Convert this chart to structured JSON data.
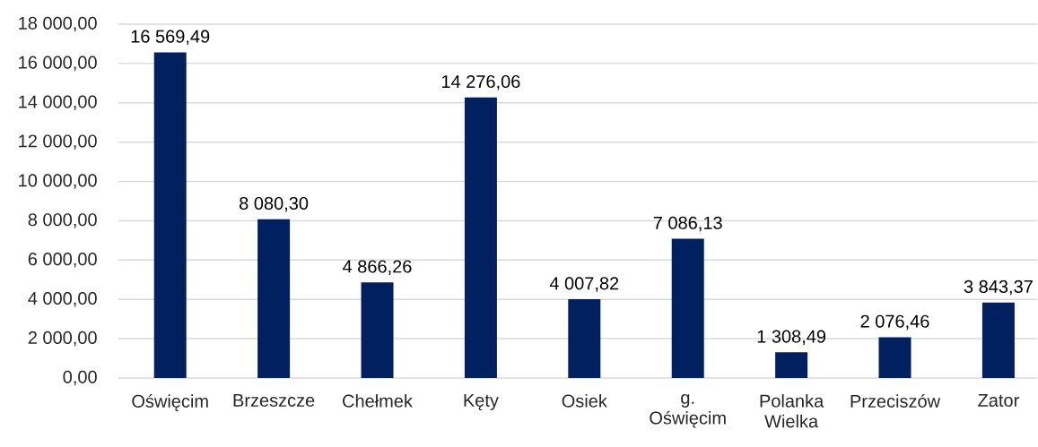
{
  "chart_data": {
    "type": "bar",
    "categories": [
      "Oświęcim",
      "Brzeszcze",
      "Chełmek",
      "Kęty",
      "Osiek",
      "g. Oświęcim",
      "Polanka Wielka",
      "Przeciszów",
      "Zator"
    ],
    "values": [
      16569.49,
      8080.3,
      4866.26,
      14276.06,
      4007.82,
      7086.13,
      1308.49,
      2076.46,
      3843.37
    ],
    "value_labels": [
      "16 569,49",
      "8 080,30",
      "4 866,26",
      "14 276,06",
      "4 007,82",
      "7 086,13",
      "1 308,49",
      "2 076,46",
      "3 843,37"
    ],
    "color": "#002060",
    "ylim": [
      0,
      18000
    ],
    "yticks": [
      {
        "value": 0,
        "label": "0,00"
      },
      {
        "value": 2000,
        "label": "2 000,00"
      },
      {
        "value": 4000,
        "label": "4 000,00"
      },
      {
        "value": 6000,
        "label": "6 000,00"
      },
      {
        "value": 8000,
        "label": "8 000,00"
      },
      {
        "value": 10000,
        "label": "10 000,00"
      },
      {
        "value": 12000,
        "label": "12 000,00"
      },
      {
        "value": 14000,
        "label": "14 000,00"
      },
      {
        "value": 16000,
        "label": "16 000,00"
      },
      {
        "value": 18000,
        "label": "18 000,00"
      }
    ],
    "grid": "y"
  }
}
